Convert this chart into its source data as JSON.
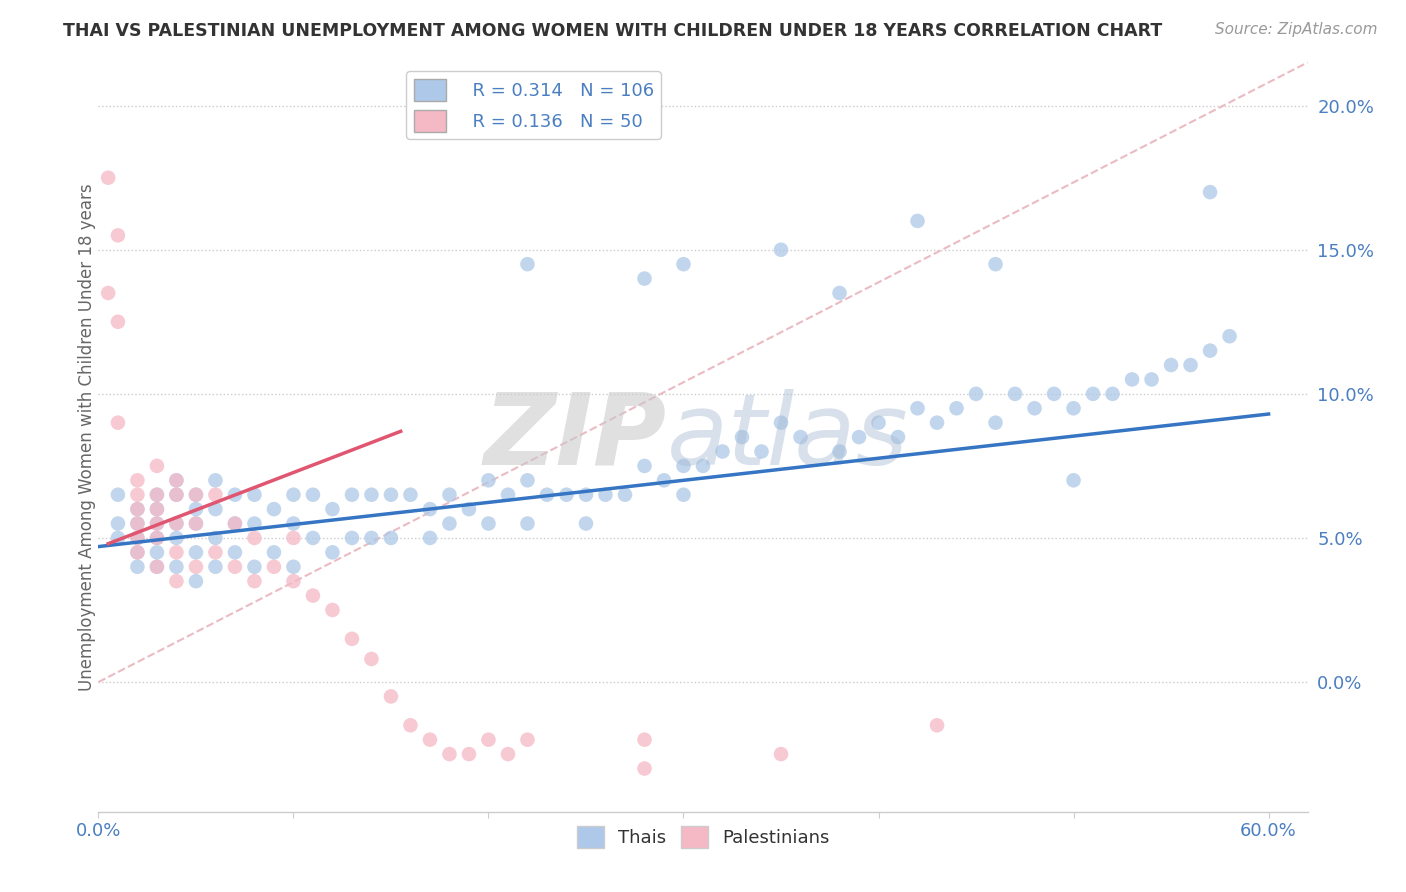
{
  "title": "THAI VS PALESTINIAN UNEMPLOYMENT AMONG WOMEN WITH CHILDREN UNDER 18 YEARS CORRELATION CHART",
  "source": "Source: ZipAtlas.com",
  "ylabel": "Unemployment Among Women with Children Under 18 years",
  "xlim": [
    0.0,
    0.62
  ],
  "ylim": [
    -0.045,
    0.215
  ],
  "ytick_values": [
    0.0,
    0.05,
    0.1,
    0.15,
    0.2
  ],
  "ytick_labels": [
    "0.0%",
    "5.0%",
    "10.0%",
    "15.0%",
    "20.0%"
  ],
  "xtick_labels_show": [
    "0.0%",
    "60.0%"
  ],
  "xtick_positions_show": [
    0.0,
    0.6
  ],
  "thai_R": 0.314,
  "thai_N": 106,
  "palestinian_R": 0.136,
  "palestinian_N": 50,
  "thai_color": "#adc8e8",
  "thai_line_color": "#3575c3",
  "palestinian_color": "#f5b8c5",
  "palestinian_line_color": "#e05570",
  "diagonal_color": "#e8b4bc",
  "legend_label_thai": "Thais",
  "legend_label_palestinian": "Palestinians",
  "watermark_zip": "ZIP",
  "watermark_atlas": "atlas",
  "thai_x": [
    0.01,
    0.01,
    0.01,
    0.02,
    0.02,
    0.02,
    0.02,
    0.02,
    0.03,
    0.03,
    0.03,
    0.03,
    0.03,
    0.03,
    0.04,
    0.04,
    0.04,
    0.04,
    0.04,
    0.05,
    0.05,
    0.05,
    0.05,
    0.05,
    0.06,
    0.06,
    0.06,
    0.06,
    0.07,
    0.07,
    0.07,
    0.08,
    0.08,
    0.08,
    0.09,
    0.09,
    0.1,
    0.1,
    0.1,
    0.11,
    0.11,
    0.12,
    0.12,
    0.13,
    0.13,
    0.14,
    0.14,
    0.15,
    0.15,
    0.16,
    0.17,
    0.17,
    0.18,
    0.18,
    0.19,
    0.2,
    0.2,
    0.21,
    0.22,
    0.22,
    0.23,
    0.24,
    0.25,
    0.25,
    0.26,
    0.27,
    0.28,
    0.29,
    0.3,
    0.3,
    0.31,
    0.32,
    0.33,
    0.34,
    0.35,
    0.36,
    0.38,
    0.39,
    0.4,
    0.41,
    0.42,
    0.43,
    0.44,
    0.45,
    0.46,
    0.47,
    0.48,
    0.49,
    0.5,
    0.51,
    0.52,
    0.53,
    0.54,
    0.55,
    0.56,
    0.57,
    0.58,
    0.28,
    0.35,
    0.42,
    0.5,
    0.57,
    0.22,
    0.3,
    0.38,
    0.46
  ],
  "thai_y": [
    0.055,
    0.065,
    0.05,
    0.06,
    0.055,
    0.05,
    0.045,
    0.04,
    0.065,
    0.06,
    0.055,
    0.05,
    0.045,
    0.04,
    0.07,
    0.065,
    0.055,
    0.05,
    0.04,
    0.065,
    0.06,
    0.055,
    0.045,
    0.035,
    0.07,
    0.06,
    0.05,
    0.04,
    0.065,
    0.055,
    0.045,
    0.065,
    0.055,
    0.04,
    0.06,
    0.045,
    0.065,
    0.055,
    0.04,
    0.065,
    0.05,
    0.06,
    0.045,
    0.065,
    0.05,
    0.065,
    0.05,
    0.065,
    0.05,
    0.065,
    0.06,
    0.05,
    0.065,
    0.055,
    0.06,
    0.07,
    0.055,
    0.065,
    0.07,
    0.055,
    0.065,
    0.065,
    0.065,
    0.055,
    0.065,
    0.065,
    0.075,
    0.07,
    0.075,
    0.065,
    0.075,
    0.08,
    0.085,
    0.08,
    0.09,
    0.085,
    0.08,
    0.085,
    0.09,
    0.085,
    0.095,
    0.09,
    0.095,
    0.1,
    0.09,
    0.1,
    0.095,
    0.1,
    0.095,
    0.1,
    0.1,
    0.105,
    0.105,
    0.11,
    0.11,
    0.115,
    0.12,
    0.14,
    0.15,
    0.16,
    0.07,
    0.17,
    0.145,
    0.145,
    0.135,
    0.145
  ],
  "pal_x": [
    0.005,
    0.005,
    0.01,
    0.01,
    0.01,
    0.02,
    0.02,
    0.02,
    0.02,
    0.02,
    0.02,
    0.03,
    0.03,
    0.03,
    0.03,
    0.03,
    0.03,
    0.04,
    0.04,
    0.04,
    0.04,
    0.04,
    0.05,
    0.05,
    0.05,
    0.06,
    0.06,
    0.07,
    0.07,
    0.08,
    0.08,
    0.09,
    0.1,
    0.1,
    0.11,
    0.12,
    0.13,
    0.14,
    0.15,
    0.16,
    0.17,
    0.18,
    0.19,
    0.2,
    0.21,
    0.22,
    0.28,
    0.28,
    0.35,
    0.43
  ],
  "pal_y": [
    0.135,
    0.175,
    0.09,
    0.155,
    0.125,
    0.07,
    0.065,
    0.06,
    0.055,
    0.05,
    0.045,
    0.075,
    0.065,
    0.06,
    0.055,
    0.05,
    0.04,
    0.07,
    0.065,
    0.055,
    0.045,
    0.035,
    0.065,
    0.055,
    0.04,
    0.065,
    0.045,
    0.055,
    0.04,
    0.05,
    0.035,
    0.04,
    0.05,
    0.035,
    0.03,
    0.025,
    0.015,
    0.008,
    -0.005,
    -0.015,
    -0.02,
    -0.025,
    -0.025,
    -0.02,
    -0.025,
    -0.02,
    -0.03,
    -0.02,
    -0.025,
    -0.015
  ]
}
